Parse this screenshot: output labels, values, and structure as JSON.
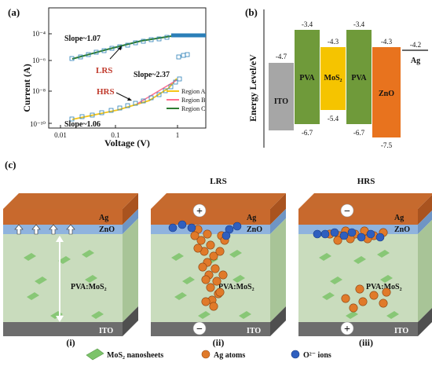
{
  "panel_a": {
    "label": "(a)",
    "ylabel": "Current (A)",
    "xlabel": "Voltage (V)",
    "yticks": [
      "10⁻¹⁰",
      "10⁻⁸",
      "10⁻⁶",
      "10⁻⁴"
    ],
    "xticks": [
      "0.01",
      "0.1",
      "1"
    ],
    "annotations": {
      "slope_top": "Slope~1.07",
      "lrs": "LRS",
      "slope_mid": "Slope~2.37",
      "hrs": "HRS",
      "slope_bottom": "Slope~1.06"
    },
    "legend": [
      "Region A",
      "Region B",
      "Region C"
    ],
    "colors": {
      "region_a": "#f5c518",
      "region_b": "#ff6f8f",
      "region_c": "#2e7d32",
      "marker": "#2b7fb8",
      "lrs_text": "#c0392b",
      "hrs_text": "#c0392b"
    }
  },
  "panel_b": {
    "label": "(b)",
    "ylabel": "Energy Level/eV",
    "layers": [
      {
        "name": "ITO",
        "top": "-4.7",
        "bottom": "",
        "color": "#a6a6a6"
      },
      {
        "name": "PVA",
        "top": "-3.4",
        "bottom": "-6.7",
        "color": "#6f9a3a"
      },
      {
        "name": "MoS₂",
        "top": "-4.3",
        "bottom": "-5.4",
        "color": "#f5c400"
      },
      {
        "name": "PVA",
        "top": "-3.4",
        "bottom": "-6.7",
        "color": "#6f9a3a"
      },
      {
        "name": "ZnO",
        "top": "-4.3",
        "bottom": "-7.5",
        "color": "#e8731e"
      },
      {
        "name": "Ag",
        "top": "-4.2",
        "bottom": "",
        "color": "#000000"
      }
    ]
  },
  "panel_c": {
    "label": "(c)",
    "devices": [
      {
        "caption": "(i)",
        "title": "",
        "top_sign": "",
        "bottom_sign": ""
      },
      {
        "caption": "(ii)",
        "title": "LRS",
        "top_sign": "+",
        "bottom_sign": "−"
      },
      {
        "caption": "(iii)",
        "title": "HRS",
        "top_sign": "−",
        "bottom_sign": "+"
      }
    ],
    "layer_labels": {
      "ag": "Ag",
      "zno": "ZnO",
      "pva": "PVA:MoS₂",
      "ito": "ITO"
    },
    "legend": [
      "MoS₂ nanosheets",
      "Ag atoms",
      "O²⁻ ions"
    ],
    "colors": {
      "ag": "#c8692d",
      "ag_side": "#a9531f",
      "zno": "#8fb3de",
      "pva": "#c9dcbd",
      "pva_side": "#a8c497",
      "ito": "#6d6d6d",
      "ito_side": "#4f4f4f",
      "atom": "#e07a2a",
      "ion": "#2f5fbf",
      "sheet": "#7cc36a"
    }
  }
}
